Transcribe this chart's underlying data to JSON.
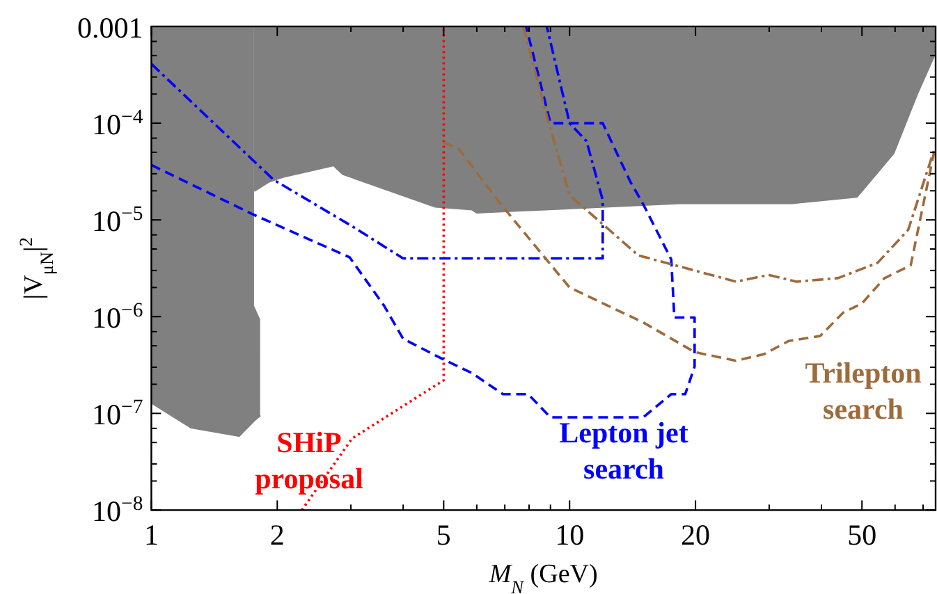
{
  "chart_data": {
    "type": "line",
    "xlabel": "M$_{N}$ (GeV)",
    "ylabel": "|V$_{μN}$|$^{2}$",
    "log": "xy",
    "grid": false,
    "legend": false,
    "xlim": [
      1,
      75
    ],
    "ylim": [
      1e-08,
      0.001
    ],
    "xticks": [
      1,
      2,
      {
        "value": 3,
        "label": null
      },
      {
        "value": 4,
        "label": null
      },
      5,
      {
        "value": 6,
        "label": null
      },
      {
        "value": 7,
        "label": null
      },
      {
        "value": 8,
        "label": null
      },
      {
        "value": 9,
        "label": null
      },
      10,
      20,
      {
        "value": 30,
        "label": null
      },
      {
        "value": 40,
        "label": null
      },
      50,
      {
        "value": 60,
        "label": null
      },
      {
        "value": 70,
        "label": null
      }
    ],
    "yticks": [
      {
        "value": 1e-08,
        "label": "10$^{−8}$"
      },
      {
        "value": 1e-07,
        "label": "10$^{−7}$"
      },
      {
        "value": 1e-06,
        "label": "10$^{−6}$"
      },
      {
        "value": 1e-05,
        "label": "10$^{−5}$"
      },
      {
        "value": 0.0001,
        "label": "10$^{−4}$"
      },
      0.001,
      {
        "value": 2e-08,
        "label": null
      },
      {
        "value": 3e-08,
        "label": null
      },
      {
        "value": 5e-08,
        "label": null
      },
      {
        "value": 7e-08,
        "label": null
      },
      {
        "value": 2e-07,
        "label": null
      },
      {
        "value": 3e-07,
        "label": null
      },
      {
        "value": 5e-07,
        "label": null
      },
      {
        "value": 7e-07,
        "label": null
      },
      {
        "value": 2e-06,
        "label": null
      },
      {
        "value": 3e-06,
        "label": null
      },
      {
        "value": 5e-06,
        "label": null
      },
      {
        "value": 7e-06,
        "label": null
      },
      {
        "value": 2e-05,
        "label": null
      },
      {
        "value": 3e-05,
        "label": null
      },
      {
        "value": 5e-05,
        "label": null
      },
      {
        "value": 7e-05,
        "label": null
      },
      {
        "value": 0.0002,
        "label": null
      },
      {
        "value": 0.0003,
        "label": null
      },
      {
        "value": 0.0005,
        "label": null
      },
      {
        "value": 0.0007,
        "label": null
      }
    ],
    "series": [
      {
        "color": "#808080",
        "line_style": "solid",
        "x": [
          1,
          1.245,
          1.62,
          1.76,
          1.76,
          1.82
        ],
        "values": [
          1.3e-07,
          7.2e-08,
          5.9e-08,
          8.5e-08,
          8.5e-08,
          9.6e-08
        ],
        "lower": [
          1.3e-07,
          7.2e-08,
          5.9e-08,
          8.5e-08,
          8.5e-08,
          9.6e-08
        ],
        "upper": [
          0.001,
          0.001,
          0.001,
          0.001,
          1.3e-06,
          9.4e-07
        ]
      },
      {
        "color": "#808080",
        "line_style": "solid",
        "x": [
          1.76,
          1.91,
          2.06,
          2.73,
          2.87,
          4.78,
          5.85,
          6.0,
          18.4,
          34,
          48.6,
          59.4,
          67.8,
          74.3,
          75
        ],
        "values": [
          2e-05,
          2.5e-05,
          2.8e-05,
          3.7e-05,
          3e-05,
          1.38e-05,
          1.29e-05,
          1.2e-05,
          1.5e-05,
          1.5e-05,
          1.75e-05,
          4.9e-05,
          0.000206,
          0.0005,
          0.0006
        ],
        "lower": [
          2e-05,
          2.5e-05,
          2.8e-05,
          3.7e-05,
          3e-05,
          1.38e-05,
          1.29e-05,
          1.2e-05,
          1.5e-05,
          1.5e-05,
          1.75e-05,
          4.9e-05,
          0.000206,
          0.0005,
          0.0006
        ],
        "upper": [
          0.001,
          0.001,
          0.001,
          0.001,
          0.001,
          0.001,
          0.001,
          0.001,
          0.001,
          0.001,
          0.001,
          0.001,
          0.001,
          0.001,
          0.001
        ]
      },
      {
        "name": "SHiP proposal",
        "color": "#ff0000",
        "line_style": "dotted",
        "x": [
          2.29,
          3.02,
          5,
          5
        ],
        "values": [
          1e-08,
          5.5e-08,
          2.2e-07,
          0.001
        ]
      },
      {
        "name": "Lepton jet search",
        "color": "#0000ff",
        "line_style": "dashed",
        "x": [
          1,
          1.75,
          2.98,
          3.6,
          4.0,
          5.0,
          5.85,
          6.93,
          7.96,
          9.0,
          15.0,
          17.5,
          18.9,
          19.9,
          19.9,
          17.8,
          17.5,
          15.0,
          13.96,
          12,
          9.0,
          7.87
        ],
        "values": [
          3.7e-05,
          1.14e-05,
          4.1e-06,
          1.3e-06,
          5.9e-07,
          3.6e-07,
          2.6e-07,
          1.58e-07,
          1.58e-07,
          9.1e-08,
          9.1e-08,
          1.58e-07,
          1.58e-07,
          3.05e-07,
          9.8e-07,
          9.8e-07,
          3.9e-06,
          1.45e-05,
          2.5e-05,
          0.0001,
          0.0001,
          0.001
        ]
      },
      {
        "color": "#0000ff",
        "line_style": "dashdot",
        "x": [
          1,
          1.96,
          3.02,
          4.0,
          12,
          12,
          10.98,
          10,
          8.82
        ],
        "values": [
          0.00041,
          2.6e-05,
          8.6e-06,
          4e-06,
          4e-06,
          1.6e-05,
          6.5e-05,
          0.0001,
          0.001
        ]
      },
      {
        "name": "Trilepton search",
        "color": "#9e6b3a",
        "line_style": "dashed",
        "x": [
          5,
          5.42,
          6.84,
          10,
          15,
          19.9,
          25,
          29.2,
          33.4,
          39.7,
          45.1,
          50,
          56.6,
          65.4,
          74.3
        ],
        "values": [
          6.3e-05,
          5.5e-05,
          1.46e-05,
          2e-06,
          8.7e-07,
          4.3e-07,
          3.5e-07,
          4.1e-07,
          5.6e-07,
          6.3e-07,
          1.1e-06,
          1.37e-06,
          2.5e-06,
          3.4e-06,
          4.9e-05
        ]
      },
      {
        "color": "#9e6b3a",
        "line_style": "dashdot",
        "x": [
          7.75,
          8.82,
          10,
          14.6,
          25,
          29.9,
          34.9,
          43.8,
          54.5,
          64.5,
          74.3
        ],
        "values": [
          0.001,
          0.000119,
          1.8e-05,
          4.3e-06,
          2.3e-06,
          2.7e-06,
          2.3e-06,
          2.5e-06,
          3.6e-06,
          7.9e-06,
          5.2e-05
        ]
      }
    ]
  }
}
